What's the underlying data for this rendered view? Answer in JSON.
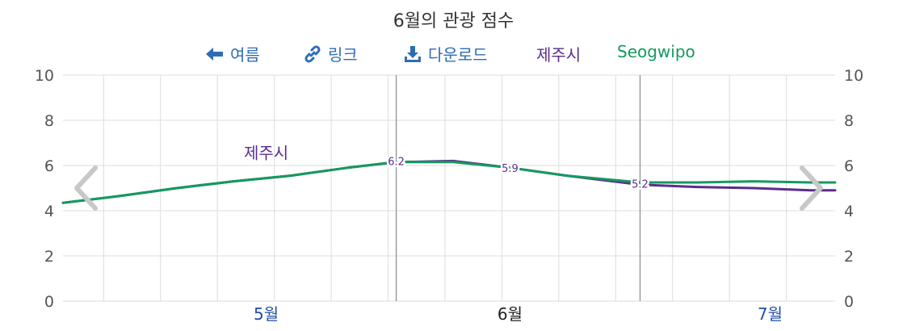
{
  "title": "6월의 관광 점수",
  "toolbar": {
    "back_label": "여름",
    "link_label": "링크",
    "download_label": "다운로드"
  },
  "colors": {
    "jeju": "#5b2d8c",
    "seogwipo": "#149a5f",
    "link": "#2f6db3",
    "grid": "#dddddd",
    "axis_text": "#555555",
    "month_current": "#222222",
    "month_other": "#1f4fa8"
  },
  "chart_data": {
    "type": "line",
    "title": "6월의 관광 점수",
    "ylim": [
      0,
      10
    ],
    "y_ticks": [
      "0",
      "2",
      "4",
      "6",
      "8",
      "10"
    ],
    "xlim": [
      "2023-04-21",
      "2023-07-25"
    ],
    "months": [
      {
        "label": "5월",
        "date": "2023-05-16",
        "current": false
      },
      {
        "label": "6월",
        "date": "2023-06-15",
        "current": true
      },
      {
        "label": "7월",
        "date": "2023-07-17",
        "current": false
      }
    ],
    "period_lines": [
      "2023-06-01",
      "2023-07-01"
    ],
    "legend": [
      "제주시",
      "Seogwipo"
    ],
    "series": [
      {
        "name": "제주시",
        "color_key": "jeju",
        "points": [
          {
            "x": "2023-04-21",
            "y": 4.35
          },
          {
            "x": "2023-04-28",
            "y": 4.65
          },
          {
            "x": "2023-05-05",
            "y": 5.0
          },
          {
            "x": "2023-05-12",
            "y": 5.3
          },
          {
            "x": "2023-05-19",
            "y": 5.55
          },
          {
            "x": "2023-05-26",
            "y": 5.9
          },
          {
            "x": "2023-06-01",
            "y": 6.15
          },
          {
            "x": "2023-06-08",
            "y": 6.2
          },
          {
            "x": "2023-06-15",
            "y": 5.9
          },
          {
            "x": "2023-06-22",
            "y": 5.55
          },
          {
            "x": "2023-07-01",
            "y": 5.15
          },
          {
            "x": "2023-07-08",
            "y": 5.05
          },
          {
            "x": "2023-07-15",
            "y": 5.0
          },
          {
            "x": "2023-07-22",
            "y": 4.9
          },
          {
            "x": "2023-07-25",
            "y": 4.9
          }
        ]
      },
      {
        "name": "Seogwipo",
        "color_key": "seogwipo",
        "points": [
          {
            "x": "2023-04-21",
            "y": 4.35
          },
          {
            "x": "2023-04-28",
            "y": 4.65
          },
          {
            "x": "2023-05-05",
            "y": 5.0
          },
          {
            "x": "2023-05-12",
            "y": 5.3
          },
          {
            "x": "2023-05-19",
            "y": 5.55
          },
          {
            "x": "2023-05-26",
            "y": 5.9
          },
          {
            "x": "2023-06-01",
            "y": 6.15
          },
          {
            "x": "2023-06-08",
            "y": 6.15
          },
          {
            "x": "2023-06-15",
            "y": 5.9
          },
          {
            "x": "2023-06-22",
            "y": 5.55
          },
          {
            "x": "2023-07-01",
            "y": 5.25
          },
          {
            "x": "2023-07-08",
            "y": 5.25
          },
          {
            "x": "2023-07-15",
            "y": 5.3
          },
          {
            "x": "2023-07-22",
            "y": 5.25
          },
          {
            "x": "2023-07-25",
            "y": 5.25
          }
        ]
      }
    ],
    "value_labels": [
      {
        "x": "2023-06-01",
        "y": 6.2,
        "text": "6.2"
      },
      {
        "x": "2023-06-15",
        "y": 5.9,
        "text": "5.9"
      },
      {
        "x": "2023-07-01",
        "y": 5.2,
        "text": "5.2"
      }
    ],
    "series_label": {
      "text": "제주시",
      "x": "2023-05-16",
      "y": 6.3
    }
  }
}
